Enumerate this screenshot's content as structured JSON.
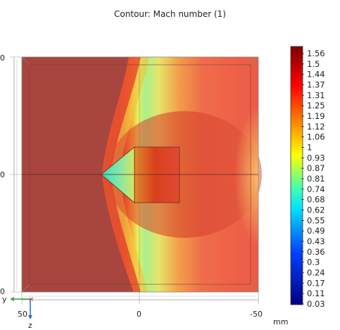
{
  "chart_data": {
    "type": "heatmap",
    "title": "Contour: Mach number (1)",
    "unit": "mm",
    "colorbar": {
      "ticks": [
        1.56,
        1.5,
        1.44,
        1.37,
        1.31,
        1.25,
        1.19,
        1.12,
        1.06,
        1,
        0.93,
        0.87,
        0.81,
        0.74,
        0.68,
        0.62,
        0.55,
        0.49,
        0.43,
        0.36,
        0.3,
        0.24,
        0.17,
        0.11,
        0.03
      ],
      "range": [
        0.03,
        1.56
      ],
      "colors": [
        "#7f0000",
        "#ff0000",
        "#ff9900",
        "#ffff00",
        "#00e0c0",
        "#0000ff",
        "#00007f"
      ]
    },
    "x_axis": {
      "label": "y",
      "ticks": [
        "50",
        "0",
        "-50"
      ]
    },
    "z_axis": {
      "label": "z"
    },
    "left_ticks": [
      "0",
      "0",
      "0"
    ]
  },
  "colors": {
    "free_stream": "#a8453e",
    "shock": "#e04a30",
    "subsonic": "#5ae3c0"
  }
}
